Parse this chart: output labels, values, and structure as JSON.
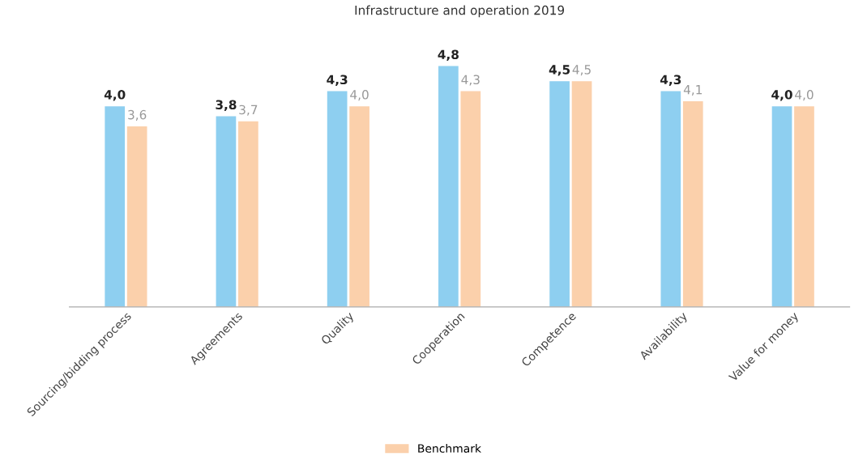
{
  "chart_data": {
    "type": "bar",
    "title": "Infrastructure and operation 2019",
    "categories": [
      "Sourcing/bidding process",
      "Agreements",
      "Quality",
      "Cooperation",
      "Competence",
      "Availability",
      "Value for money"
    ],
    "series": [
      {
        "color": "#8ecff0",
        "values": [
          4.0,
          3.8,
          4.3,
          4.8,
          4.5,
          4.3,
          4.0
        ],
        "value_labels": [
          "4,0",
          "3,8",
          "4,3",
          "4,8",
          "4,5",
          "4,3",
          "4,0"
        ]
      },
      {
        "name": "Benchmark",
        "color": "#fbd0ab",
        "values": [
          3.6,
          3.7,
          4.0,
          4.3,
          4.5,
          4.1,
          4.0
        ],
        "value_labels": [
          "3,6",
          "3,7",
          "4,0",
          "4,3",
          "4,5",
          "4,1",
          "4,0"
        ]
      }
    ],
    "legend": "bottom",
    "grid": false
  }
}
